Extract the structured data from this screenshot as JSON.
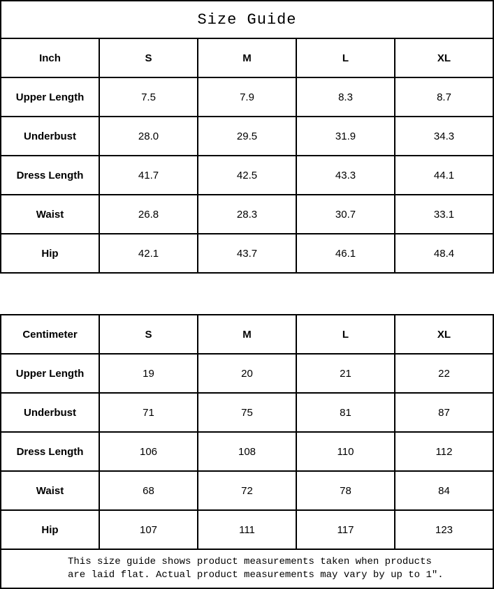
{
  "page": {
    "title": "Size Guide",
    "background_color": "#ffffff",
    "border_color": "#000000",
    "text_color": "#000000"
  },
  "tables": [
    {
      "unit": "Inch",
      "columns": [
        "S",
        "M",
        "L",
        "XL"
      ],
      "rows": [
        {
          "label": "Upper Length",
          "values": [
            "7.5",
            "7.9",
            "8.3",
            "8.7"
          ]
        },
        {
          "label": "Underbust",
          "values": [
            "28.0",
            "29.5",
            "31.9",
            "34.3"
          ]
        },
        {
          "label": "Dress Length",
          "values": [
            "41.7",
            "42.5",
            "43.3",
            "44.1"
          ]
        },
        {
          "label": "Waist",
          "values": [
            "26.8",
            "28.3",
            "30.7",
            "33.1"
          ]
        },
        {
          "label": "Hip",
          "values": [
            "42.1",
            "43.7",
            "46.1",
            "48.4"
          ]
        }
      ]
    },
    {
      "unit": "Centimeter",
      "columns": [
        "S",
        "M",
        "L",
        "XL"
      ],
      "rows": [
        {
          "label": "Upper Length",
          "values": [
            "19",
            "20",
            "21",
            "22"
          ]
        },
        {
          "label": "Underbust",
          "values": [
            "71",
            "75",
            "81",
            "87"
          ]
        },
        {
          "label": "Dress Length",
          "values": [
            "106",
            "108",
            "110",
            "112"
          ]
        },
        {
          "label": "Waist",
          "values": [
            "68",
            "72",
            "78",
            "84"
          ]
        },
        {
          "label": "Hip",
          "values": [
            "107",
            "111",
            "117",
            "123"
          ]
        }
      ]
    }
  ],
  "footer": {
    "line1": "This size guide shows product measurements taken when products",
    "line2": "are laid flat. Actual product measurements may vary by up to 1″."
  }
}
